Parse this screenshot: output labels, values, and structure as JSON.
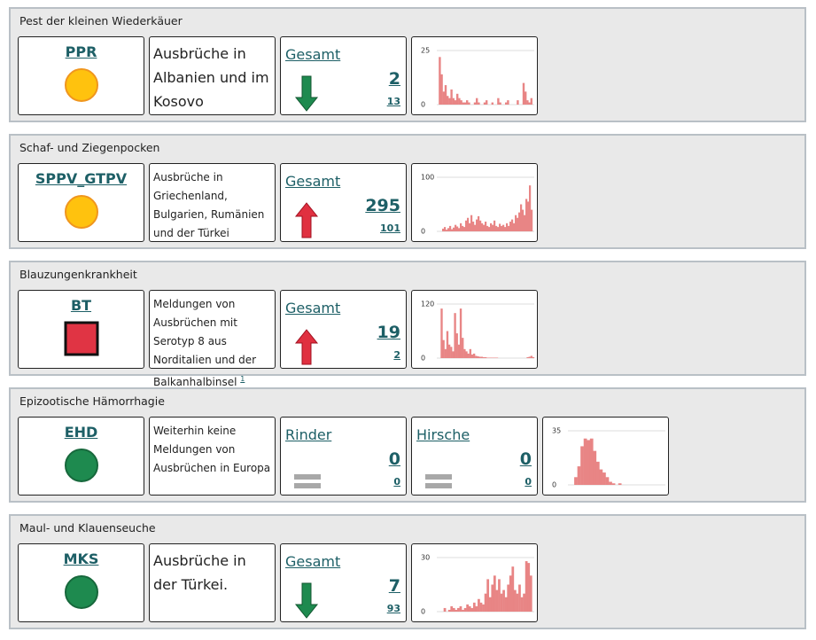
{
  "panels": [
    {
      "title": "Pest der kleinen Wiederkäuer",
      "code": "PPR",
      "status": "yellow-circle",
      "description": "Ausbrüche in Albanien und im Kosovo",
      "counts": [
        {
          "label": "Gesamt",
          "trend": "down",
          "value": 2,
          "sub": 13
        }
      ],
      "chart": {
        "ylim": [
          0,
          25
        ],
        "yticks": [
          0,
          25
        ],
        "color": "#e88585",
        "values": [
          0,
          22,
          14,
          6,
          9,
          4,
          3,
          7,
          3,
          2,
          5,
          3,
          2,
          1,
          1,
          2,
          1,
          0,
          0,
          1,
          3,
          1,
          0,
          0,
          1,
          2,
          0,
          0,
          1,
          0,
          0,
          3,
          1,
          0,
          0,
          1,
          2,
          0,
          0,
          0,
          0,
          2,
          0,
          0,
          10,
          6,
          2,
          1,
          3,
          0
        ]
      }
    },
    {
      "title": "Schaf- und Ziegenpocken",
      "code": "SPPV_GTPV",
      "status": "yellow-circle",
      "description": "Ausbrüche in Griechenland, Bulgarien, Rumänien und der Türkei",
      "counts": [
        {
          "label": "Gesamt",
          "trend": "up",
          "value": 295,
          "sub": 101
        }
      ],
      "chart": {
        "ylim": [
          0,
          100
        ],
        "yticks": [
          0,
          100
        ],
        "color": "#e88585",
        "values": [
          0,
          0,
          0,
          5,
          8,
          3,
          6,
          10,
          4,
          7,
          12,
          9,
          6,
          15,
          10,
          8,
          20,
          25,
          15,
          30,
          18,
          12,
          22,
          28,
          20,
          15,
          12,
          18,
          10,
          8,
          15,
          12,
          20,
          10,
          8,
          14,
          10,
          12,
          8,
          15,
          10,
          18,
          22,
          15,
          30,
          25,
          35,
          50,
          40,
          30,
          60,
          55,
          85,
          40,
          0
        ]
      }
    },
    {
      "title": "Blauzungenkrankheit",
      "code": "BT",
      "status": "red-square",
      "description": "Meldungen von Ausbrüchen mit Serotyp 8 aus Norditalien und der Balkanhalbinsel",
      "footnote": "1",
      "counts": [
        {
          "label": "Gesamt",
          "trend": "up",
          "value": 19,
          "sub": 2
        }
      ],
      "chart": {
        "ylim": [
          0,
          120
        ],
        "yticks": [
          0,
          120
        ],
        "color": "#e88585",
        "values": [
          0,
          0,
          110,
          40,
          20,
          60,
          30,
          25,
          15,
          100,
          55,
          30,
          110,
          45,
          20,
          15,
          10,
          20,
          8,
          10,
          5,
          4,
          3,
          3,
          2,
          2,
          1,
          1,
          1,
          1,
          1,
          1,
          0,
          0,
          0,
          0,
          0,
          0,
          0,
          0,
          0,
          0,
          0,
          0,
          0,
          0,
          0,
          2,
          3,
          5,
          2
        ]
      }
    },
    {
      "title": "Epizootische Hämorrhagie",
      "code": "EHD",
      "status": "green-circle",
      "description": "Weiterhin keine Meldungen von Ausbrüchen in Europa",
      "counts": [
        {
          "label": "Rinder",
          "trend": "equal",
          "value": 0,
          "sub": 0
        },
        {
          "label": "Hirsche",
          "trend": "equal",
          "value": 0,
          "sub": 0
        }
      ],
      "chart": {
        "ylim": [
          0,
          35
        ],
        "yticks": [
          0,
          35
        ],
        "color": "#e88585",
        "values": [
          0,
          0,
          5,
          12,
          25,
          30,
          29,
          30,
          22,
          15,
          10,
          8,
          5,
          2,
          1,
          0,
          1,
          0,
          0,
          0,
          0,
          0,
          0,
          0,
          0,
          0,
          0,
          0,
          0,
          0,
          0
        ]
      }
    },
    {
      "title": "Maul- und Klauenseuche",
      "code": "MKS",
      "status": "green-circle",
      "description": "Ausbrüche in der Türkei.",
      "counts": [
        {
          "label": "Gesamt",
          "trend": "down",
          "value": 7,
          "sub": 93
        }
      ],
      "chart": {
        "ylim": [
          0,
          30
        ],
        "yticks": [
          0,
          30
        ],
        "color": "#e88585",
        "values": [
          0,
          0,
          0,
          2,
          0,
          1,
          3,
          2,
          1,
          2,
          3,
          1,
          2,
          4,
          3,
          2,
          5,
          3,
          7,
          5,
          4,
          10,
          18,
          8,
          15,
          20,
          12,
          18,
          10,
          12,
          8,
          15,
          20,
          25,
          12,
          10,
          15,
          8,
          10,
          28,
          27,
          20,
          0
        ]
      }
    }
  ]
}
